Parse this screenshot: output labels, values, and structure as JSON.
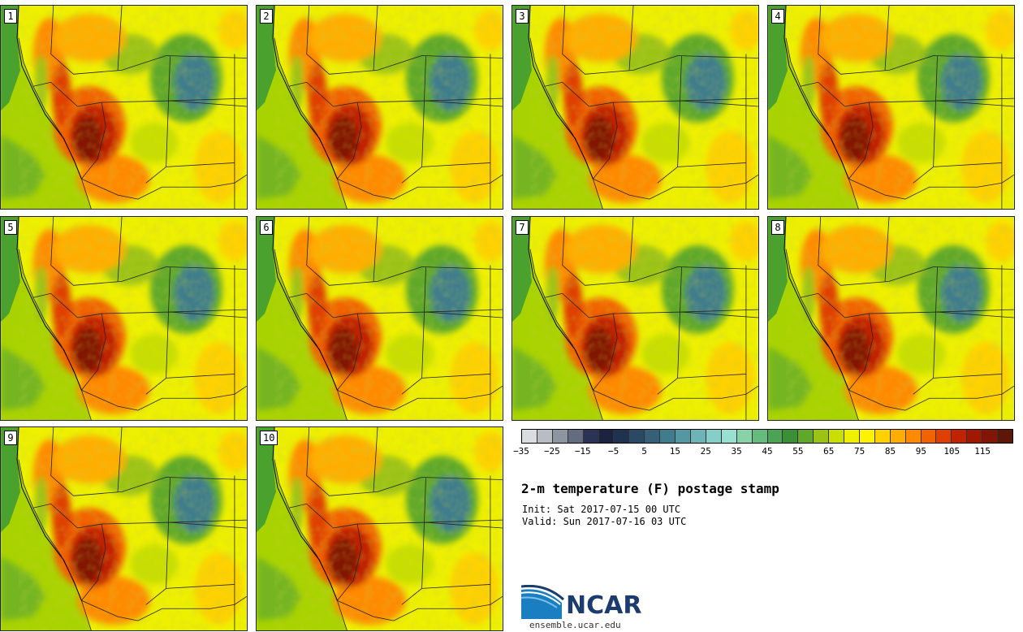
{
  "panels": [
    {
      "label": "1"
    },
    {
      "label": "2"
    },
    {
      "label": "3"
    },
    {
      "label": "4"
    },
    {
      "label": "5"
    },
    {
      "label": "6"
    },
    {
      "label": "7"
    },
    {
      "label": "8"
    },
    {
      "label": "9"
    },
    {
      "label": "10"
    }
  ],
  "colorbar": {
    "colors": [
      "#d9dde0",
      "#b8bdc4",
      "#8d95a1",
      "#646d80",
      "#2a3355",
      "#1b2340",
      "#1f3350",
      "#294965",
      "#356078",
      "#3f7d8c",
      "#5598a3",
      "#6db3b8",
      "#86cfc9",
      "#98e0d2",
      "#87d2a7",
      "#66bc7f",
      "#4ba453",
      "#3b8f36",
      "#5fa82a",
      "#9bc316",
      "#c8df00",
      "#eef000",
      "#fff200",
      "#ffd100",
      "#ffae00",
      "#ff8a00",
      "#f26200",
      "#df3f00",
      "#c12200",
      "#a11800",
      "#821505",
      "#5e1607"
    ],
    "tick_labels": [
      "-35",
      "-25",
      "-15",
      "-5",
      "5",
      "15",
      "25",
      "35",
      "45",
      "55",
      "65",
      "75",
      "85",
      "95",
      "105",
      "115"
    ]
  },
  "title": "2-m temperature (F) postage stamp",
  "init": "Init: Sat 2017-07-15 00 UTC",
  "valid": "Valid: Sun 2017-07-16 03 UTC",
  "logo_text": "NCAR",
  "site": "ensemble.ucar.edu"
}
